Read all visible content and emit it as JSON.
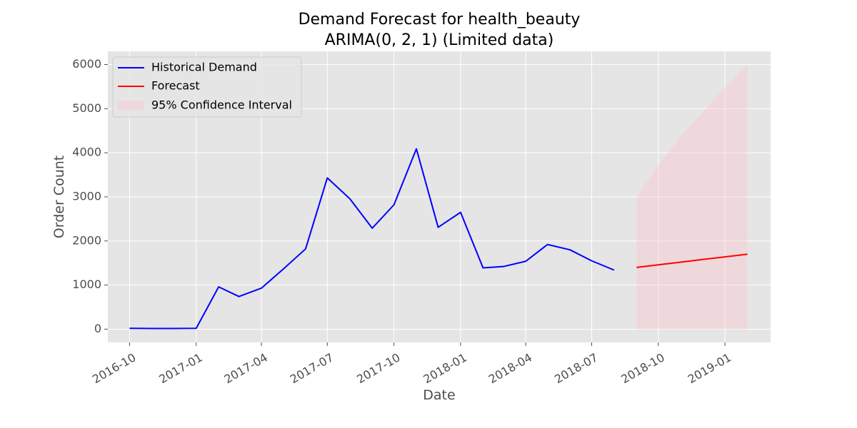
{
  "chart_data": {
    "type": "line",
    "title_line1": "Demand Forecast for health_beauty",
    "title_line2": "ARIMA(0, 2, 1) (Limited data)",
    "xlabel": "Date",
    "ylabel": "Order Count",
    "ylim": [
      -300,
      6300
    ],
    "xlim": [
      "2016-09-01",
      "2019-03-05"
    ],
    "y_ticks": [
      0,
      1000,
      2000,
      3000,
      4000,
      5000,
      6000
    ],
    "x_ticks": [
      "2016-10",
      "2017-01",
      "2017-04",
      "2017-07",
      "2017-10",
      "2018-01",
      "2018-04",
      "2018-07",
      "2018-10",
      "2019-01"
    ],
    "grid": true,
    "legend_position": "top-left",
    "colors": {
      "background": "#e5e5e5",
      "grid": "#ffffff",
      "historical": "#0000ff",
      "forecast": "#ff0000",
      "confidence": "#ffc0cb"
    },
    "series": [
      {
        "name": "Historical Demand",
        "x": [
          "2016-10-01",
          "2016-11-01",
          "2016-12-01",
          "2017-01-01",
          "2017-02-01",
          "2017-03-01",
          "2017-04-01",
          "2017-05-01",
          "2017-06-01",
          "2017-07-01",
          "2017-08-01",
          "2017-09-01",
          "2017-10-01",
          "2017-11-01",
          "2017-12-01",
          "2018-01-01",
          "2018-02-01",
          "2018-03-01",
          "2018-04-01",
          "2018-05-01",
          "2018-06-01",
          "2018-07-01",
          "2018-08-01"
        ],
        "values": [
          20,
          15,
          15,
          20,
          960,
          740,
          930,
          1360,
          1820,
          3430,
          2960,
          2290,
          2820,
          4090,
          2310,
          2650,
          1390,
          1420,
          1540,
          1920,
          1800,
          1550,
          1340
        ]
      },
      {
        "name": "Forecast",
        "x": [
          "2018-09-01",
          "2018-10-01",
          "2018-11-01",
          "2018-12-01",
          "2019-01-01",
          "2019-02-01"
        ],
        "values": [
          1400,
          1460,
          1520,
          1580,
          1640,
          1700
        ]
      }
    ],
    "confidence_interval": {
      "name": "95% Confidence Interval",
      "x": [
        "2018-09-01",
        "2018-10-01",
        "2018-11-01",
        "2018-12-01",
        "2019-01-01",
        "2019-02-01"
      ],
      "lower": [
        0,
        0,
        0,
        0,
        0,
        0
      ],
      "upper": [
        2990,
        3720,
        4370,
        4920,
        5480,
        6010
      ]
    }
  }
}
